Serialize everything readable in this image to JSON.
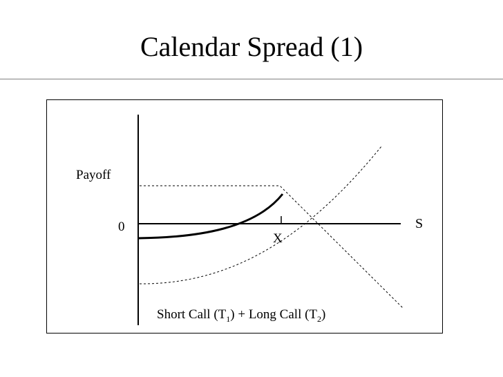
{
  "slide": {
    "title": "Calendar Spread (1)"
  },
  "diagram": {
    "y_axis_label": "Payoff",
    "zero_label": "0",
    "x_axis_label": "S",
    "strike_label": "X",
    "caption": {
      "part1": "Short Call (T",
      "sub1": "1",
      "part2": ") + Long Call (T",
      "sub2": "2",
      "part3": ")"
    }
  },
  "colors": {
    "ink": "#000000",
    "title_rule": "#7f7f7f",
    "background": "#ffffff"
  }
}
